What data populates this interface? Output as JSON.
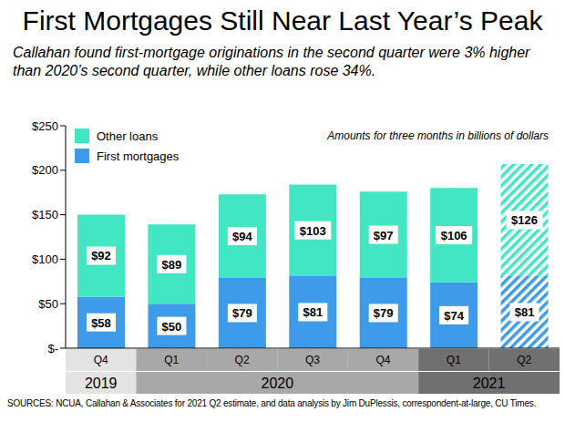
{
  "chart_data": {
    "type": "bar",
    "title": "First Mortgages Still Near Last Year’s Peak",
    "subtitle": "Callahan found first-mortgage originations in the second quarter were 3% higher than 2020’s second quarter, while other loans rose 34%.",
    "annotation": "Amounts for three months in billions of dollars",
    "source": "SOURCES: NCUA, Callahan & Associates for 2021 Q2 estimate, and data analysis by Jim DuPlessis, correspondent-at-large, CU Times.",
    "stacked": true,
    "data_labels": true,
    "grid": false,
    "legend": "upper left",
    "categories": [
      "Q4",
      "Q1",
      "Q2",
      "Q3",
      "Q4",
      "Q1",
      "Q2"
    ],
    "groups": [
      {
        "label": "2019",
        "span": 1
      },
      {
        "label": "2020",
        "span": 4
      },
      {
        "label": "2021",
        "span": 2
      }
    ],
    "ylim": [
      0,
      250
    ],
    "yticks": [
      {
        "value": 0,
        "label": "$-"
      },
      {
        "value": 50,
        "label": "$50"
      },
      {
        "value": 100,
        "label": "$100"
      },
      {
        "value": 150,
        "label": "$150"
      },
      {
        "value": 200,
        "label": "$200"
      },
      {
        "value": 250,
        "label": "$250"
      }
    ],
    "series": [
      {
        "name": "First mortgages",
        "color": "#3d9be9",
        "values": [
          58,
          50,
          79,
          81,
          79,
          74,
          81
        ],
        "value_labels": [
          "$58",
          "$50",
          "$79",
          "$81",
          "$79",
          "$74",
          "$81"
        ]
      },
      {
        "name": "Other loans",
        "color": "#42e6c2",
        "values": [
          92,
          89,
          94,
          103,
          97,
          106,
          126
        ],
        "value_labels": [
          "$92",
          "$89",
          "$94",
          "$103",
          "$97",
          "$106",
          "$126"
        ]
      }
    ]
  }
}
